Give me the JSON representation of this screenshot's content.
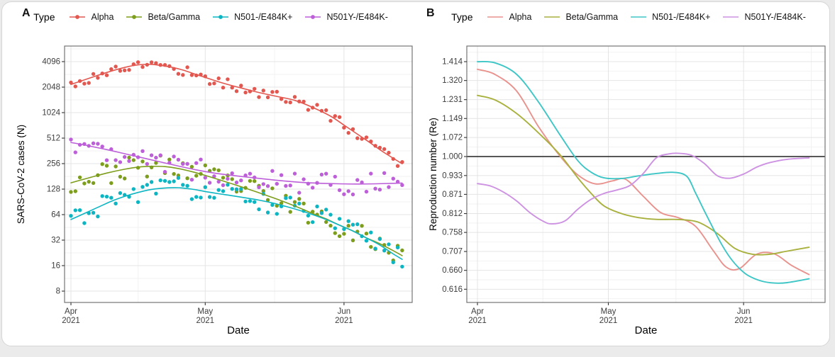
{
  "window": {
    "background_color": "#ebebeb",
    "card_background": "#ffffff"
  },
  "chart_data": [
    {
      "panel": "A",
      "type": "scatter",
      "legend_title": "Type",
      "legend_key": "point-line",
      "xlabel": "Date",
      "ylabel": "SARS-CoV-2 cases (N)",
      "y_scale": "log2",
      "y_ticks": [
        "8",
        "16",
        "32",
        "64",
        "128",
        "256",
        "512",
        "1024",
        "2048",
        "4096"
      ],
      "x_ticks": [
        {
          "day": 0,
          "line1": "Apr",
          "line2": "2021"
        },
        {
          "day": 30,
          "line1": "May",
          "line2": "2021"
        },
        {
          "day": 61,
          "line1": "Jun",
          "line2": "2021"
        }
      ],
      "x_minor_days": [
        15,
        45.5,
        76.5
      ],
      "grid": true,
      "series": [
        {
          "name": "Alpha",
          "color": "#e2574f",
          "scatter_amp": 0.22,
          "seed": 17,
          "trend": [
            [
              0,
              2200
            ],
            [
              4,
              2600
            ],
            [
              8,
              3050
            ],
            [
              12,
              3500
            ],
            [
              15,
              3750
            ],
            [
              18,
              3800
            ],
            [
              22,
              3560
            ],
            [
              25,
              3260
            ],
            [
              28,
              2880
            ],
            [
              31,
              2560
            ],
            [
              34,
              2280
            ],
            [
              38,
              2000
            ],
            [
              42,
              1770
            ],
            [
              46,
              1590
            ],
            [
              50,
              1430
            ],
            [
              54,
              1180
            ],
            [
              58,
              930
            ],
            [
              61,
              730
            ],
            [
              64,
              570
            ],
            [
              67,
              445
            ],
            [
              70,
              345
            ],
            [
              74,
              255
            ]
          ]
        },
        {
          "name": "Beta/Gamma",
          "color": "#7d9d1c",
          "scatter_amp": 0.44,
          "seed": 23,
          "trend": [
            [
              0,
              152
            ],
            [
              4,
              174
            ],
            [
              8,
              198
            ],
            [
              12,
              220
            ],
            [
              15,
              233
            ],
            [
              18,
              238
            ],
            [
              21,
              236
            ],
            [
              24,
              224
            ],
            [
              27,
              206
            ],
            [
              30,
              186
            ],
            [
              33,
              166
            ],
            [
              36,
              148
            ],
            [
              39,
              131
            ],
            [
              42,
              116
            ],
            [
              45,
              102
            ],
            [
              48,
              89
            ],
            [
              51,
              77
            ],
            [
              54,
              66
            ],
            [
              57,
              57
            ],
            [
              60,
              48
            ],
            [
              63,
              41
            ],
            [
              66,
              34
            ],
            [
              69,
              29
            ],
            [
              72,
              24
            ],
            [
              74,
              21
            ]
          ]
        },
        {
          "name": "N501-/E484K+",
          "color": "#0db5c2",
          "scatter_amp": 0.42,
          "seed": 31,
          "trend": [
            [
              0,
              56
            ],
            [
              3,
              66
            ],
            [
              6,
              78
            ],
            [
              9,
              92
            ],
            [
              12,
              105
            ],
            [
              15,
              117
            ],
            [
              18,
              127
            ],
            [
              21,
              132
            ],
            [
              24,
              133
            ],
            [
              27,
              128
            ],
            [
              30,
              120
            ],
            [
              33,
              113
            ],
            [
              36,
              107
            ],
            [
              39,
              101
            ],
            [
              42,
              95
            ],
            [
              45,
              88
            ],
            [
              48,
              80
            ],
            [
              51,
              72
            ],
            [
              54,
              64
            ],
            [
              57,
              56
            ],
            [
              60,
              48
            ],
            [
              63,
              41
            ],
            [
              66,
              34
            ],
            [
              69,
              28
            ],
            [
              72,
              22
            ],
            [
              74,
              19
            ]
          ]
        },
        {
          "name": "N501Y-/E484K-",
          "color": "#bc5fd8",
          "scatter_amp": 0.44,
          "seed": 47,
          "trend": [
            [
              0,
              455
            ],
            [
              4,
              415
            ],
            [
              8,
              375
            ],
            [
              12,
              335
            ],
            [
              16,
              300
            ],
            [
              20,
              268
            ],
            [
              24,
              240
            ],
            [
              28,
              216
            ],
            [
              32,
              198
            ],
            [
              36,
              186
            ],
            [
              40,
              176
            ],
            [
              44,
              167
            ],
            [
              48,
              159
            ],
            [
              52,
              153
            ],
            [
              56,
              150
            ],
            [
              60,
              148
            ],
            [
              64,
              147
            ],
            [
              68,
              148
            ],
            [
              72,
              150
            ],
            [
              74,
              151
            ]
          ]
        }
      ]
    },
    {
      "panel": "B",
      "type": "line",
      "legend_title": "Type",
      "legend_key": "line",
      "xlabel": "Date",
      "ylabel": "Reproduction number (Re)",
      "y_scale": "log2",
      "y_ticks": [
        "0.616",
        "0.660",
        "0.707",
        "0.758",
        "0.812",
        "0.871",
        "0.933",
        "1.000",
        "1.072",
        "1.149",
        "1.231",
        "1.320",
        "1.414"
      ],
      "ref_line": "1.000",
      "x_ticks": [
        {
          "day": 0,
          "line1": "Apr",
          "line2": "2021"
        },
        {
          "day": 30,
          "line1": "May",
          "line2": "2021"
        },
        {
          "day": 61,
          "line1": "Jun",
          "line2": "2021"
        }
      ],
      "x_minor_days": [
        15,
        45.5,
        76.5
      ],
      "grid": true,
      "series": [
        {
          "name": "Alpha",
          "color": "#e9928d",
          "trend": [
            [
              0,
              1.375
            ],
            [
              4,
              1.35
            ],
            [
              9,
              1.27
            ],
            [
              14,
              1.115
            ],
            [
              19,
              1.0
            ],
            [
              23,
              0.935
            ],
            [
              27,
              0.905
            ],
            [
              31,
              0.915
            ],
            [
              34,
              0.92
            ],
            [
              38,
              0.865
            ],
            [
              42,
              0.815
            ],
            [
              46,
              0.8
            ],
            [
              50,
              0.775
            ],
            [
              54,
              0.71
            ],
            [
              57,
              0.668
            ],
            [
              60,
              0.664
            ],
            [
              64,
              0.7
            ],
            [
              68,
              0.701
            ],
            [
              72,
              0.672
            ],
            [
              76,
              0.65
            ]
          ]
        },
        {
          "name": "Beta/Gamma",
          "color": "#a9b13e",
          "trend": [
            [
              0,
              1.25
            ],
            [
              4,
              1.23
            ],
            [
              9,
              1.17
            ],
            [
              14,
              1.09
            ],
            [
              19,
              1.005
            ],
            [
              23,
              0.925
            ],
            [
              26,
              0.875
            ],
            [
              29,
              0.835
            ],
            [
              33,
              0.812
            ],
            [
              37,
              0.8
            ],
            [
              41,
              0.795
            ],
            [
              45,
              0.795
            ],
            [
              48,
              0.793
            ],
            [
              51,
              0.785
            ],
            [
              55,
              0.755
            ],
            [
              59,
              0.715
            ],
            [
              63,
              0.7
            ],
            [
              67,
              0.7
            ],
            [
              71,
              0.708
            ],
            [
              76,
              0.718
            ]
          ]
        },
        {
          "name": "N501-/E484K+",
          "color": "#3ec6c6",
          "trend": [
            [
              0,
              1.414
            ],
            [
              4,
              1.408
            ],
            [
              9,
              1.35
            ],
            [
              14,
              1.22
            ],
            [
              19,
              1.08
            ],
            [
              23,
              0.985
            ],
            [
              26,
              0.945
            ],
            [
              29,
              0.925
            ],
            [
              33,
              0.923
            ],
            [
              37,
              0.932
            ],
            [
              41,
              0.94
            ],
            [
              45,
              0.944
            ],
            [
              48,
              0.93
            ],
            [
              50,
              0.875
            ],
            [
              52,
              0.82
            ],
            [
              54,
              0.77
            ],
            [
              56,
              0.725
            ],
            [
              58,
              0.69
            ],
            [
              60,
              0.665
            ],
            [
              62,
              0.648
            ],
            [
              65,
              0.635
            ],
            [
              68,
              0.63
            ],
            [
              71,
              0.631
            ],
            [
              76,
              0.64
            ]
          ]
        },
        {
          "name": "N501Y-/E484K-",
          "color": "#cd92e2",
          "trend": [
            [
              0,
              0.906
            ],
            [
              3,
              0.898
            ],
            [
              6,
              0.878
            ],
            [
              9,
              0.85
            ],
            [
              12,
              0.815
            ],
            [
              15,
              0.79
            ],
            [
              17,
              0.782
            ],
            [
              20,
              0.79
            ],
            [
              23,
              0.825
            ],
            [
              26,
              0.855
            ],
            [
              29,
              0.874
            ],
            [
              32,
              0.885
            ],
            [
              35,
              0.9
            ],
            [
              38,
              0.94
            ],
            [
              41,
              0.995
            ],
            [
              44,
              1.01
            ],
            [
              46,
              1.012
            ],
            [
              49,
              1.005
            ],
            [
              52,
              0.975
            ],
            [
              55,
              0.932
            ],
            [
              58,
              0.924
            ],
            [
              61,
              0.938
            ],
            [
              64,
              0.962
            ],
            [
              67,
              0.978
            ],
            [
              71,
              0.99
            ],
            [
              76,
              0.995
            ]
          ]
        }
      ]
    }
  ],
  "theme": {
    "grid_major": "#e4e4e4",
    "grid_minor": "#f2f2f2",
    "panel_border": "#757575",
    "tick_color": "#333333",
    "tick_label_color": "#3d3d3d",
    "axis_title_color": "#000000",
    "ref_line_color": "#404040"
  }
}
